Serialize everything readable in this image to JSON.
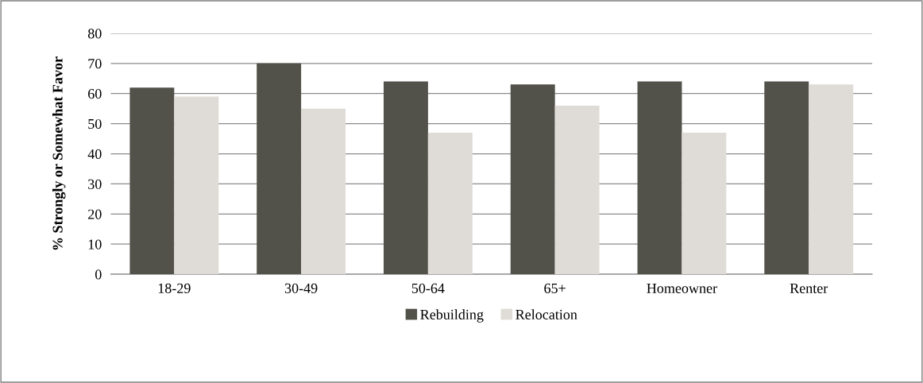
{
  "chart_data": {
    "type": "bar",
    "ylabel": "% Strongly or Somewhat Favor",
    "categories": [
      "18-29",
      "30-49",
      "50-64",
      "65+",
      "Homeowner",
      "Renter"
    ],
    "series": [
      {
        "name": "Rebuilding",
        "color": "#52524a",
        "values": [
          62,
          70,
          64,
          63,
          64,
          64
        ]
      },
      {
        "name": "Relocation",
        "color": "#dfdcd7",
        "values": [
          59,
          55,
          47,
          56,
          47,
          63
        ]
      }
    ],
    "ylim": [
      0,
      80
    ],
    "yticks": [
      0,
      10,
      20,
      30,
      40,
      50,
      60,
      70,
      80
    ],
    "grid": "y",
    "legend": "bottom"
  }
}
